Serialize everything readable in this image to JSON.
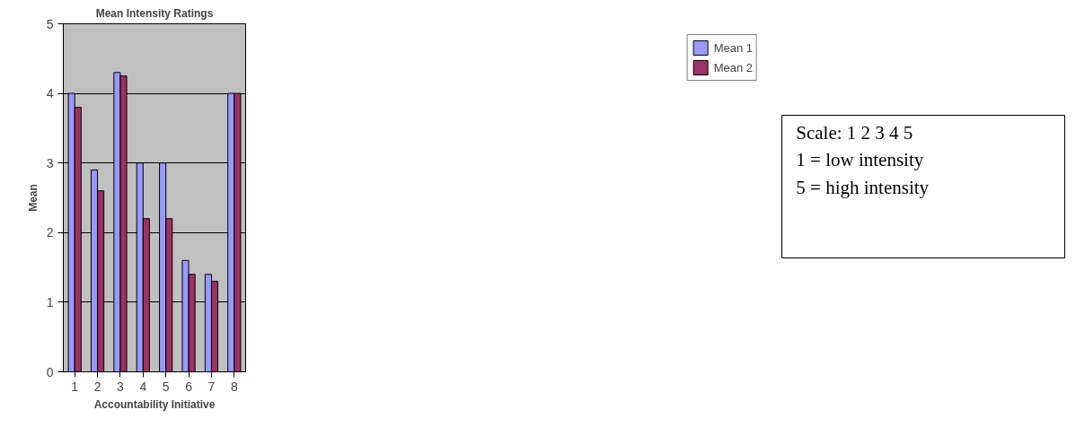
{
  "chart_data": [
    {
      "type": "bar",
      "title": "Mean Intensity Ratings",
      "xlabel": "Accountability Initiative",
      "ylabel": "Mean",
      "categories": [
        "1",
        "2",
        "3",
        "4",
        "5",
        "6",
        "7",
        "8"
      ],
      "series": [
        {
          "name": "Mean 1",
          "color": "#9999ff",
          "values": [
            4.0,
            2.9,
            4.3,
            3.0,
            3.0,
            1.6,
            1.4,
            4.0
          ]
        },
        {
          "name": "Mean 2",
          "color": "#993366",
          "values": [
            3.8,
            2.6,
            4.25,
            2.2,
            2.2,
            1.4,
            1.3,
            4.0
          ]
        }
      ],
      "ylim": [
        0,
        5
      ],
      "yticks": [
        0,
        1,
        2,
        3,
        4,
        5
      ],
      "grid": "y",
      "legend": "right"
    },
    {
      "type": "other",
      "annotations": [
        "Scale: 1 2 3 4 5",
        "1 = low intensity",
        "5 = high intensity"
      ]
    }
  ]
}
